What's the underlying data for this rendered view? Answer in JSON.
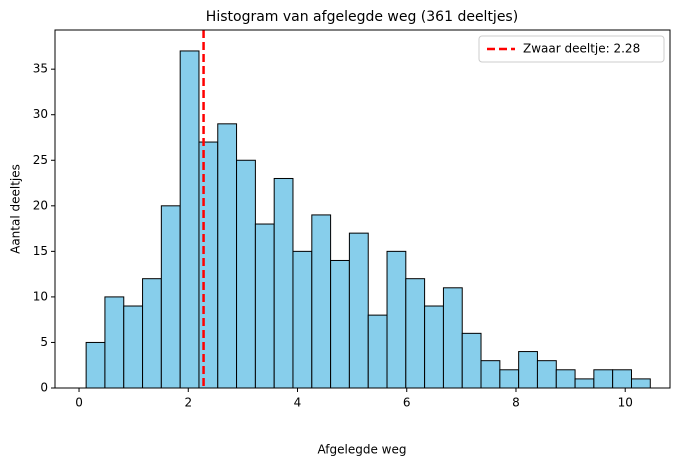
{
  "chart_data": {
    "type": "histogram",
    "title": "Histogram van afgelegde weg (361 deeltjes)",
    "x_label": "Afgelegde weg",
    "y_label": "Aantal deeltjes",
    "bins": [
      0.13,
      0.474,
      0.819,
      1.163,
      1.507,
      1.852,
      2.196,
      2.54,
      2.884,
      3.229,
      3.573,
      3.917,
      4.262,
      4.606,
      4.95,
      5.295,
      5.639,
      5.983,
      6.327,
      6.672,
      7.016,
      7.36,
      7.705,
      8.049,
      8.393,
      8.738,
      9.082,
      9.426,
      9.77,
      10.115,
      10.459
    ],
    "values": [
      5,
      10,
      9,
      12,
      20,
      37,
      27,
      29,
      25,
      18,
      23,
      15,
      19,
      14,
      17,
      8,
      15,
      12,
      9,
      11,
      6,
      3,
      2,
      4,
      3,
      2,
      1,
      2,
      2,
      1
    ],
    "color": "#87ceeb",
    "xlim": [
      -0.44,
      10.82
    ],
    "xticks": [
      0,
      2,
      4,
      6,
      8,
      10
    ],
    "ylim": [
      0,
      39.3
    ],
    "yticks": [
      0,
      5,
      10,
      15,
      20,
      25,
      30,
      35
    ],
    "vline": {
      "value": 2.28,
      "label": "Zwaar deeltje: 2.28",
      "color": "#ff0000"
    },
    "legend": "upper right"
  }
}
